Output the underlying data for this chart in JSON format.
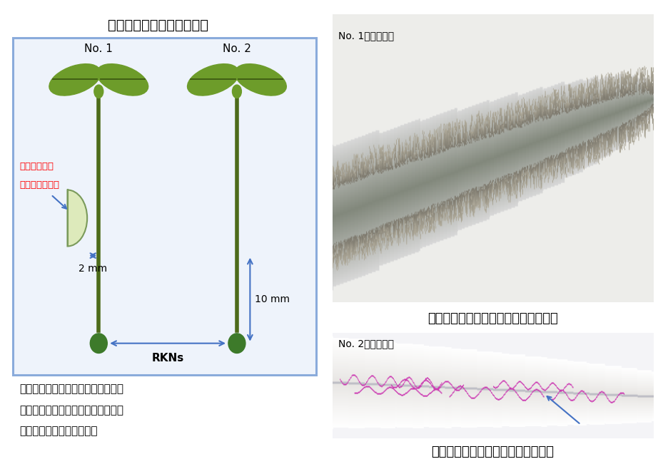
{
  "title": "植物を使った感染阵止実験",
  "bg_color": "#ffffff",
  "box_border_color": "#8aabdb",
  "box_bg": "#ffffff",
  "plant1_label": "No. 1",
  "plant2_label": "No. 2",
  "filter_label_line1": "粘菌抜出液を",
  "filter_label_line2": "含むフィルター",
  "filter_label_color": "#ff0000",
  "arrow_color": "#4472c4",
  "dist1_label": "2 mm",
  "dist2_label": "10 mm",
  "rkns_label": "RKNs",
  "stem_color": "#4d6b1a",
  "leaf_color": "#6d9c2a",
  "leaf_dark": "#3d5a12",
  "nematode_color": "#3d7a2a",
  "filter_bg": "#ddeabb",
  "filter_border": "#7a9a5a",
  "caption_line1": "植物の根の先端の部分を染色する。",
  "caption_line2": "ネコブセンチュウが感染していると",
  "caption_line3": "赤いヒモのように見える。",
  "photo1_label": "No. 1の根の先端",
  "photo1_caption": "ネコブセンチュウの感染が見られない",
  "photo2_label": "No. 2の根の先端",
  "photo2_caption": "赤い線が感染したネコブセンチュウ",
  "caption_fontsize": 11,
  "photo_label_fontsize": 10,
  "photo_caption_fontsize": 13,
  "title_fontsize": 14
}
